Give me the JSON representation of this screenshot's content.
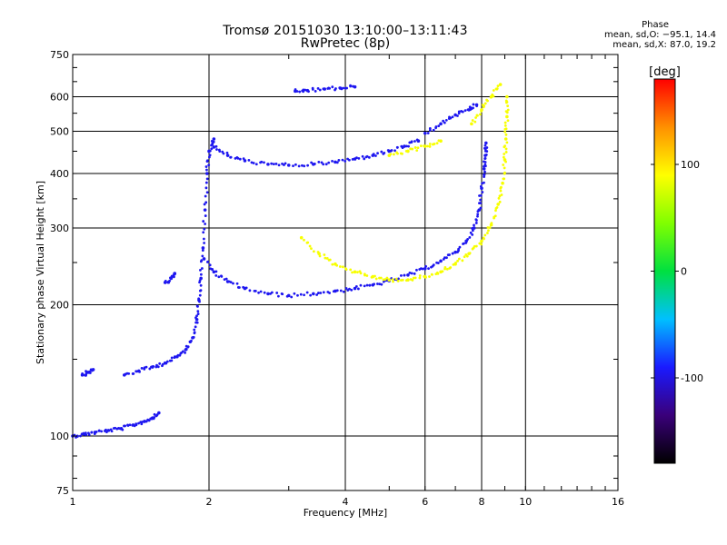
{
  "chart_data": {
    "type": "scatter",
    "title": "Tromsø 20151030 13:10:00–13:11:43",
    "subtitle": "RwPretec (8p)",
    "xlabel": "Frequency [MHz]",
    "ylabel": "Stationary phase Virtual Height [km]",
    "x_scale": "log",
    "y_scale": "log",
    "xlim": [
      1,
      16
    ],
    "ylim": [
      75,
      750
    ],
    "grid": true,
    "x_ticks": [
      1,
      2,
      4,
      6,
      8,
      10,
      16
    ],
    "y_ticks": [
      75,
      100,
      200,
      300,
      400,
      500,
      600,
      750
    ],
    "colorbar": {
      "label": "[deg]",
      "range": [
        -180,
        180
      ],
      "ticks": [
        -100,
        0,
        100
      ],
      "colors": [
        "#000000",
        "#3a007a",
        "#1a1aff",
        "#00c0ff",
        "#00e040",
        "#80ff00",
        "#ffff00",
        "#ff9000",
        "#ff0000"
      ]
    },
    "phase_stats": {
      "title": "Phase",
      "o_line": "mean, sd,O: −95.1, 14.4",
      "x_line": "mean, sd,X: 87.0, 19.2"
    },
    "series": [
      {
        "mode": "O",
        "phase_mean": -95.1,
        "traces": [
          {
            "points": [
              [
                1.0,
                100
              ],
              [
                1.06,
                101
              ],
              [
                1.12,
                102
              ],
              [
                1.2,
                103
              ],
              [
                1.28,
                104
              ],
              [
                1.36,
                106
              ],
              [
                1.44,
                108
              ],
              [
                1.5,
                110
              ],
              [
                1.55,
                113
              ]
            ]
          },
          {
            "points": [
              [
                1.05,
                138
              ],
              [
                1.08,
                140
              ],
              [
                1.11,
                142
              ]
            ]
          },
          {
            "points": [
              [
                1.3,
                138
              ],
              [
                1.4,
                141
              ],
              [
                1.5,
                144
              ],
              [
                1.6,
                147
              ],
              [
                1.7,
                152
              ],
              [
                1.78,
                158
              ],
              [
                1.84,
                168
              ],
              [
                1.88,
                185
              ],
              [
                1.9,
                205
              ],
              [
                1.92,
                230
              ],
              [
                1.94,
                270
              ],
              [
                1.96,
                330
              ],
              [
                1.98,
                400
              ],
              [
                2.0,
                450
              ],
              [
                2.05,
                480
              ]
            ]
          },
          {
            "points": [
              [
                1.95,
                255
              ],
              [
                2.05,
                238
              ],
              [
                2.2,
                226
              ],
              [
                2.4,
                218
              ],
              [
                2.7,
                212
              ],
              [
                3.0,
                210
              ],
              [
                3.4,
                212
              ],
              [
                3.8,
                215
              ],
              [
                4.2,
                218
              ],
              [
                4.6,
                222
              ],
              [
                5.0,
                227
              ],
              [
                5.5,
                234
              ],
              [
                6.0,
                242
              ],
              [
                6.5,
                252
              ],
              [
                7.0,
                264
              ],
              [
                7.4,
                280
              ],
              [
                7.7,
                300
              ],
              [
                7.9,
                330
              ],
              [
                8.0,
                370
              ],
              [
                8.1,
                410
              ],
              [
                8.15,
                440
              ],
              [
                8.18,
                470
              ]
            ]
          },
          {
            "points": [
              [
                2.05,
                460
              ],
              [
                2.2,
                440
              ],
              [
                2.4,
                428
              ],
              [
                2.7,
                420
              ],
              [
                3.0,
                418
              ],
              [
                3.4,
                420
              ],
              [
                3.8,
                425
              ],
              [
                4.2,
                432
              ],
              [
                4.6,
                440
              ],
              [
                5.0,
                450
              ],
              [
                5.4,
                462
              ],
              [
                5.8,
                475
              ]
            ]
          },
          {
            "points": [
              [
                3.1,
                618
              ],
              [
                3.3,
                620
              ],
              [
                3.6,
                625
              ],
              [
                3.9,
                628
              ],
              [
                4.2,
                632
              ]
            ]
          },
          {
            "points": [
              [
                6.0,
                495
              ],
              [
                6.5,
                520
              ],
              [
                7.0,
                545
              ],
              [
                7.5,
                560
              ],
              [
                7.8,
                575
              ]
            ]
          },
          {
            "points": [
              [
                1.6,
                225
              ],
              [
                1.65,
                230
              ],
              [
                1.68,
                236
              ]
            ]
          }
        ]
      },
      {
        "mode": "X",
        "phase_mean": 87.0,
        "traces": [
          {
            "points": [
              [
                3.2,
                285
              ],
              [
                3.5,
                262
              ],
              [
                3.8,
                248
              ],
              [
                4.2,
                238
              ],
              [
                4.6,
                232
              ],
              [
                5.0,
                228
              ],
              [
                5.5,
                228
              ],
              [
                6.0,
                232
              ],
              [
                6.5,
                238
              ],
              [
                7.0,
                248
              ],
              [
                7.5,
                262
              ],
              [
                8.0,
                280
              ],
              [
                8.4,
                305
              ],
              [
                8.7,
                340
              ],
              [
                8.9,
                380
              ],
              [
                9.0,
                430
              ],
              [
                9.05,
                480
              ],
              [
                9.1,
                540
              ],
              [
                9.1,
                600
              ]
            ]
          },
          {
            "points": [
              [
                5.0,
                440
              ],
              [
                5.5,
                450
              ],
              [
                6.0,
                462
              ],
              [
                6.5,
                475
              ]
            ]
          },
          {
            "points": [
              [
                7.6,
                520
              ],
              [
                8.0,
                560
              ],
              [
                8.4,
                600
              ],
              [
                8.8,
                640
              ]
            ]
          }
        ]
      }
    ]
  }
}
